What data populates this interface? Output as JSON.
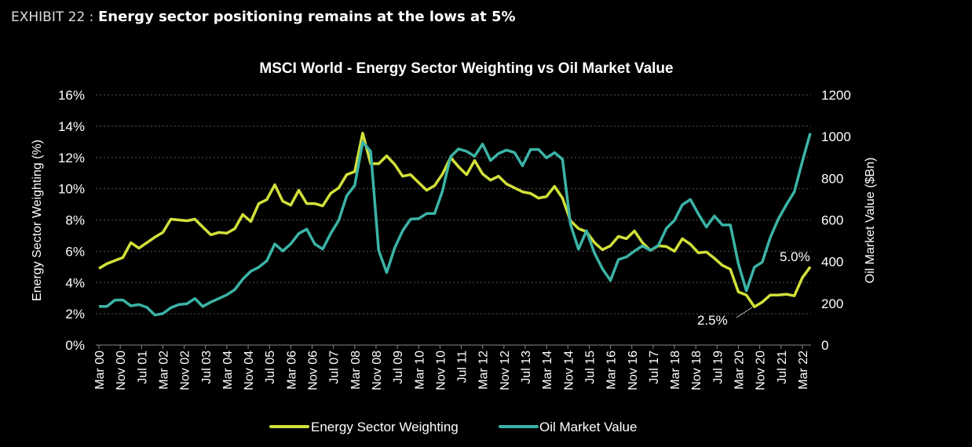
{
  "header": {
    "exhibit_label": "EXHIBIT 22 :",
    "exhibit_title": "Energy sector positioning remains at the lows at 5%"
  },
  "colors": {
    "energy": "#d2e03a",
    "oil": "#3bb3a6",
    "background": "#000000",
    "grid": "#555555"
  },
  "chart_data": {
    "type": "line",
    "title": "MSCI World - Energy Sector Weighting vs Oil Market Value",
    "ylabel": "Energy Sector Weighting (%)",
    "y2label": "Oil Market Value ($Bn)",
    "ylim": [
      0,
      16
    ],
    "y2lim": [
      0,
      1200
    ],
    "yticks": [
      "0%",
      "2%",
      "4%",
      "6%",
      "8%",
      "10%",
      "12%",
      "14%",
      "16%"
    ],
    "y2ticks": [
      "0",
      "200",
      "400",
      "600",
      "800",
      "1000",
      "1200"
    ],
    "xticks": [
      "Mar 00",
      "Nov 00",
      "Jul 01",
      "Mar 02",
      "Nov 02",
      "Jul 03",
      "Mar 04",
      "Nov 04",
      "Jul 05",
      "Mar 06",
      "Nov 06",
      "Jul 07",
      "Mar 08",
      "Nov 08",
      "Jul 09",
      "Mar 10",
      "Nov 10",
      "Jul 11",
      "Mar 12",
      "Nov 12",
      "Jul 13",
      "Mar 14",
      "Nov 14",
      "Jul 15",
      "Mar 16",
      "Nov 16",
      "Jul 17",
      "Mar 18",
      "Nov 18",
      "Jul 19",
      "Mar 20",
      "Nov 20",
      "Jul 21",
      "Mar 22"
    ],
    "x_frequency": "quarterly from Mar 00",
    "grid": true,
    "legend_position": "bottom",
    "series": [
      {
        "name": "Energy Sector Weighting",
        "axis": "left",
        "unit": "%",
        "values": [
          4.9,
          5.2,
          5.4,
          5.6,
          6.55,
          6.2,
          6.55,
          6.9,
          7.2,
          8.05,
          8.0,
          7.95,
          8.05,
          7.55,
          7.05,
          7.2,
          7.15,
          7.45,
          8.35,
          7.9,
          9.05,
          9.3,
          10.25,
          9.2,
          8.95,
          9.9,
          9.05,
          9.05,
          8.9,
          9.7,
          10.05,
          10.9,
          11.1,
          13.55,
          11.6,
          11.6,
          12.1,
          11.55,
          10.8,
          10.9,
          10.4,
          9.9,
          10.2,
          10.95,
          12.0,
          11.4,
          10.9,
          11.8,
          10.95,
          10.55,
          10.8,
          10.3,
          10.05,
          9.8,
          9.7,
          9.4,
          9.5,
          10.15,
          9.4,
          7.95,
          7.45,
          7.25,
          6.55,
          6.1,
          6.35,
          6.95,
          6.8,
          7.3,
          6.55,
          6.05,
          6.35,
          6.3,
          6.0,
          6.8,
          6.45,
          5.9,
          5.95,
          5.55,
          5.1,
          4.85,
          3.4,
          3.2,
          2.45,
          2.75,
          3.2,
          3.2,
          3.25,
          3.15,
          4.3,
          5.0
        ]
      },
      {
        "name": "Oil Market Value",
        "axis": "right",
        "unit": "$Bn",
        "values": [
          185,
          185,
          216,
          216,
          188,
          194,
          181,
          144,
          151,
          179,
          194,
          198,
          223,
          185,
          206,
          223,
          241,
          266,
          316,
          354,
          373,
          404,
          485,
          451,
          485,
          535,
          556,
          485,
          460,
          535,
          598,
          716,
          766,
          973,
          929,
          454,
          348,
          466,
          548,
          604,
          606,
          631,
          631,
          741,
          904,
          941,
          929,
          906,
          964,
          885,
          919,
          935,
          923,
          860,
          938,
          938,
          898,
          923,
          891,
          579,
          460,
          548,
          441,
          366,
          310,
          410,
          423,
          451,
          476,
          454,
          479,
          560,
          598,
          673,
          698,
          629,
          566,
          619,
          576,
          576,
          391,
          260,
          373,
          398,
          516,
          604,
          673,
          735,
          879,
          1016
        ]
      }
    ],
    "annotations": [
      {
        "text": "2.5%",
        "series": "Energy Sector Weighting",
        "point": "low"
      },
      {
        "text": "5.0%",
        "series": "Energy Sector Weighting",
        "point": "latest"
      }
    ]
  }
}
